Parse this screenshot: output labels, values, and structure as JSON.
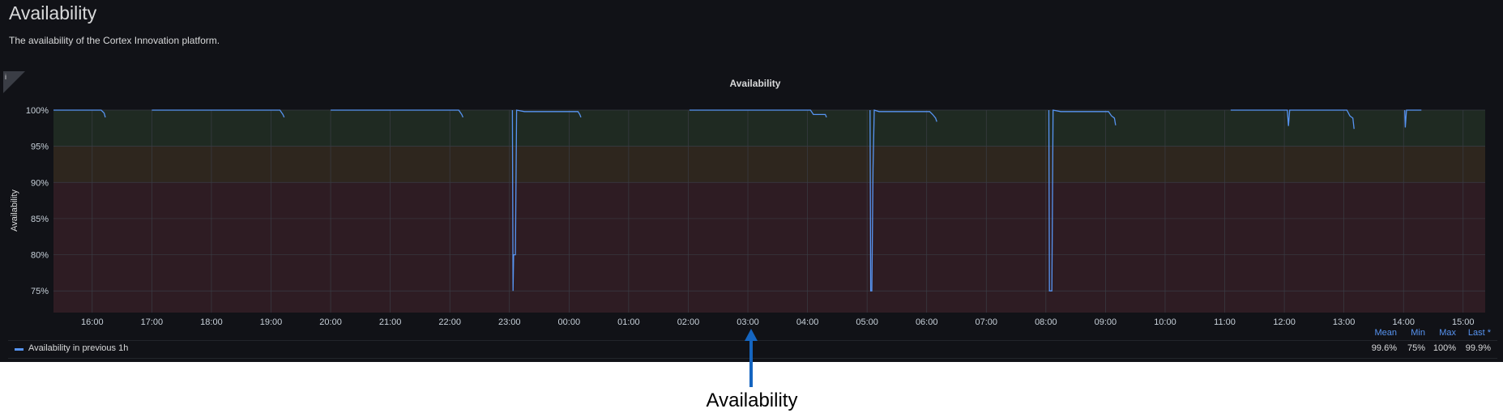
{
  "dashboard": {
    "title": "Availability",
    "description": "The availability of the Cortex Innovation platform.",
    "info_icon": "i"
  },
  "panel": {
    "title": "Availability",
    "y_axis_label": "Availability"
  },
  "chart_data": {
    "type": "line",
    "y_ticks": [
      "100%",
      "95%",
      "90%",
      "85%",
      "80%",
      "75%"
    ],
    "x_ticks": [
      "16:00",
      "17:00",
      "18:00",
      "19:00",
      "20:00",
      "21:00",
      "22:00",
      "23:00",
      "00:00",
      "01:00",
      "02:00",
      "03:00",
      "04:00",
      "05:00",
      "06:00",
      "07:00",
      "08:00",
      "09:00",
      "10:00",
      "11:00",
      "12:00",
      "13:00",
      "14:00",
      "15:00"
    ],
    "ylim": [
      72,
      100
    ],
    "thresholds": [
      {
        "from": 95,
        "to": 100,
        "color": "#1f2a22"
      },
      {
        "from": 90,
        "to": 95,
        "color": "#2e261e"
      },
      {
        "from": 72,
        "to": 90,
        "color": "#2e1c23"
      }
    ],
    "series": [
      {
        "name": "Availability in previous 1h",
        "color": "#5794f2",
        "segments": [
          [
            [
              15.35,
              100
            ],
            [
              16.15,
              100
            ],
            [
              16.2,
              99.6
            ],
            [
              16.22,
              99.0
            ]
          ],
          [
            [
              17.0,
              100
            ],
            [
              19.15,
              100
            ],
            [
              19.2,
              99.4
            ],
            [
              19.22,
              99.0
            ]
          ],
          [
            [
              20.0,
              100
            ],
            [
              22.15,
              100
            ],
            [
              22.2,
              99.4
            ],
            [
              22.22,
              99.0
            ]
          ],
          [
            [
              23.05,
              100
            ],
            [
              23.06,
              75
            ],
            [
              23.07,
              80
            ],
            [
              23.1,
              80
            ],
            [
              23.12,
              100
            ],
            [
              23.25,
              99.8
            ],
            [
              24.15,
              99.8
            ],
            [
              24.18,
              99.4
            ],
            [
              24.2,
              99.0
            ]
          ],
          [
            [
              26.02,
              100
            ],
            [
              28.05,
              100
            ],
            [
              28.1,
              99.4
            ],
            [
              28.3,
              99.4
            ],
            [
              28.32,
              99.0
            ]
          ],
          [
            [
              29.05,
              100
            ],
            [
              29.06,
              75
            ],
            [
              29.08,
              75
            ],
            [
              29.1,
              92
            ],
            [
              29.12,
              100
            ],
            [
              29.2,
              99.8
            ],
            [
              30.05,
              99.8
            ],
            [
              30.1,
              99.4
            ],
            [
              30.15,
              98.9
            ],
            [
              30.17,
              98.4
            ]
          ],
          [
            [
              32.05,
              100
            ],
            [
              32.06,
              75
            ],
            [
              32.1,
              75
            ],
            [
              32.12,
              100
            ],
            [
              32.25,
              99.8
            ],
            [
              33.05,
              99.8
            ],
            [
              33.1,
              99.2
            ],
            [
              33.15,
              98.9
            ],
            [
              33.17,
              97.9
            ]
          ],
          [
            [
              35.1,
              100
            ],
            [
              36.05,
              100
            ],
            [
              36.07,
              97.8
            ],
            [
              36.09,
              100
            ],
            [
              37.05,
              100
            ],
            [
              37.1,
              99.2
            ],
            [
              37.15,
              98.9
            ],
            [
              37.17,
              97.4
            ]
          ],
          [
            [
              38.02,
              100
            ],
            [
              38.03,
              97.6
            ],
            [
              38.05,
              100
            ],
            [
              38.3,
              100
            ]
          ]
        ]
      }
    ],
    "legend": {
      "stat_headers": [
        "Mean",
        "Min",
        "Max",
        "Last *"
      ],
      "stat_values": [
        "99.6%",
        "75%",
        "100%",
        "99.9%"
      ]
    }
  },
  "annotation": {
    "label": "Availability",
    "arrow_color": "#1565c0"
  }
}
